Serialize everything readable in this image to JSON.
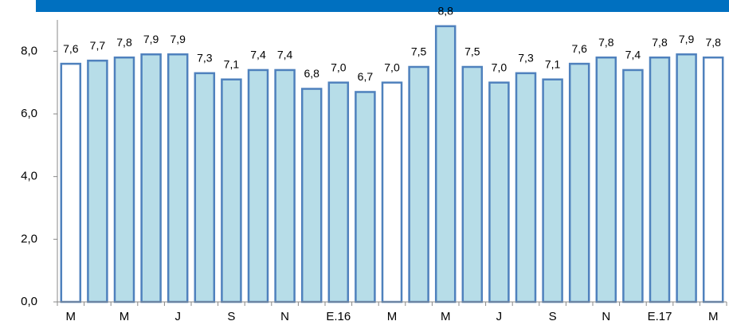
{
  "chart_data": {
    "type": "bar",
    "categories": [
      "M",
      null,
      "M",
      null,
      "J",
      null,
      "S",
      null,
      "N",
      null,
      "E.16",
      null,
      "M",
      null,
      "M",
      null,
      "J",
      null,
      "S",
      null,
      "N",
      null,
      "E.17",
      null,
      "M"
    ],
    "values": [
      7.6,
      7.7,
      7.8,
      7.9,
      7.9,
      7.3,
      7.1,
      7.4,
      7.4,
      6.8,
      7.0,
      6.7,
      7.0,
      7.5,
      8.8,
      7.5,
      7.0,
      7.3,
      7.1,
      7.6,
      7.8,
      7.4,
      7.8,
      7.9,
      7.8
    ],
    "value_labels": [
      "7,6",
      "7,7",
      "7,8",
      "7,9",
      "7,9",
      "7,3",
      "7,1",
      "7,4",
      "7,4",
      "6,8",
      "7,0",
      "6,7",
      "7,0",
      "7,5",
      "8,8",
      "7,5",
      "7,0",
      "7,3",
      "7,1",
      "7,6",
      "7,8",
      "7,4",
      "7,8",
      "7,9",
      "7,8"
    ],
    "colors": [
      "#ffffff",
      "#b7dde8",
      "#b7dde8",
      "#b7dde8",
      "#b7dde8",
      "#b7dde8",
      "#b7dde8",
      "#b7dde8",
      "#b7dde8",
      "#b7dde8",
      "#b7dde8",
      "#b7dde8",
      "#ffffff",
      "#b7dde8",
      "#b7dde8",
      "#b7dde8",
      "#b7dde8",
      "#b7dde8",
      "#b7dde8",
      "#b7dde8",
      "#b7dde8",
      "#b7dde8",
      "#b7dde8",
      "#b7dde8",
      "#ffffff"
    ],
    "edgecolor": "#4f81bd",
    "ylim": [
      0,
      9
    ],
    "yticks": [
      {
        "value": 0,
        "label": "0,0"
      },
      {
        "value": 2,
        "label": "2,0"
      },
      {
        "value": 4,
        "label": "4,0"
      },
      {
        "value": 6,
        "label": "6,0"
      },
      {
        "value": 8,
        "label": "8,0"
      }
    ]
  }
}
